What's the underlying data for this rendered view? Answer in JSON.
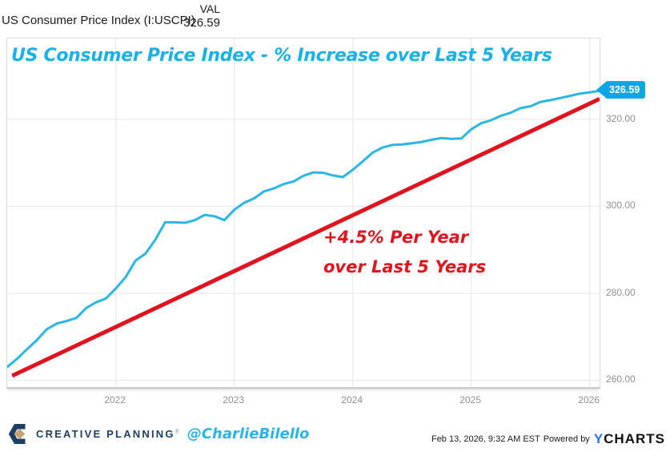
{
  "header": {
    "series_label": "US Consumer Price Index (I:USCPI)",
    "value_column_header": "VAL",
    "value": "326.59"
  },
  "title": "US Consumer Price Index - % Increase over Last 5 Years",
  "annotation": {
    "line1": "+4.5% Per Year",
    "line2": "over Last 5 Years"
  },
  "badge_label": "326.59",
  "footer": {
    "brand": "CREATIVE PLANNING",
    "trademark": "®",
    "handle": "@CharlieBilello",
    "timestamp": "Feb 13, 2026, 9:32 AM EST",
    "powered_by": "Powered by",
    "ycharts_y": "Y",
    "ycharts_rest": "CHARTS"
  },
  "colors": {
    "line_blue": "#2ab7e8",
    "line_red": "#e0131f",
    "title_cyan": "#18b1ea",
    "badge_bg": "#0ca7e2",
    "grid": "#e7e7e7",
    "axis_text": "#8f8f8f",
    "brand_navy": "#1d3f63",
    "brand_gold": "#c9a472",
    "ycharts_blue": "#2d72f5"
  },
  "chart_data": {
    "type": "line",
    "title": "US Consumer Price Index - % Increase over Last 5 Years",
    "x_start": "2021-02",
    "x_end": "2026-02",
    "months_span": 60,
    "ylim": [
      258.4,
      338.6
    ],
    "grid": true,
    "legend_position": "none",
    "y_ticks": [
      {
        "value": 320,
        "label": "320.00"
      },
      {
        "value": 300,
        "label": "300.00"
      },
      {
        "value": 280,
        "label": "280.00"
      },
      {
        "value": 260,
        "label": "260.00"
      }
    ],
    "x_ticks": [
      {
        "month": 11,
        "label": "2022"
      },
      {
        "month": 23,
        "label": "2023"
      },
      {
        "month": 35,
        "label": "2024"
      },
      {
        "month": 47,
        "label": "2025"
      },
      {
        "month": 59,
        "label": "2026"
      }
    ],
    "series": [
      {
        "name": "US Consumer Price Index (I:USCPI)",
        "color": "#2ab7e8",
        "stroke_width": 3,
        "last_value": 326.59,
        "monthly_values": [
          263.0,
          264.9,
          267.1,
          269.2,
          271.7,
          273.0,
          273.6,
          274.3,
          276.6,
          277.9,
          278.8,
          281.1,
          283.7,
          287.5,
          289.1,
          292.3,
          296.3,
          296.3,
          296.2,
          296.8,
          298.0,
          297.7,
          296.8,
          299.2,
          300.8,
          301.8,
          303.4,
          304.1,
          305.1,
          305.7,
          307.0,
          307.8,
          307.7,
          307.1,
          306.7,
          308.4,
          310.3,
          312.3,
          313.5,
          314.1,
          314.2,
          314.5,
          314.8,
          315.3,
          315.7,
          315.5,
          315.6,
          317.7,
          319.1,
          319.8,
          320.8,
          321.5,
          322.6,
          323.0,
          324.0,
          324.4,
          324.9,
          325.4,
          325.9,
          326.2,
          326.59
        ]
      },
      {
        "name": "+4.5% Per Year trend",
        "color": "#e0131f",
        "stroke_width": 5,
        "points": [
          {
            "month": 0.5,
            "value": 261.0
          },
          {
            "month": 60,
            "value": 324.7
          }
        ]
      }
    ]
  }
}
